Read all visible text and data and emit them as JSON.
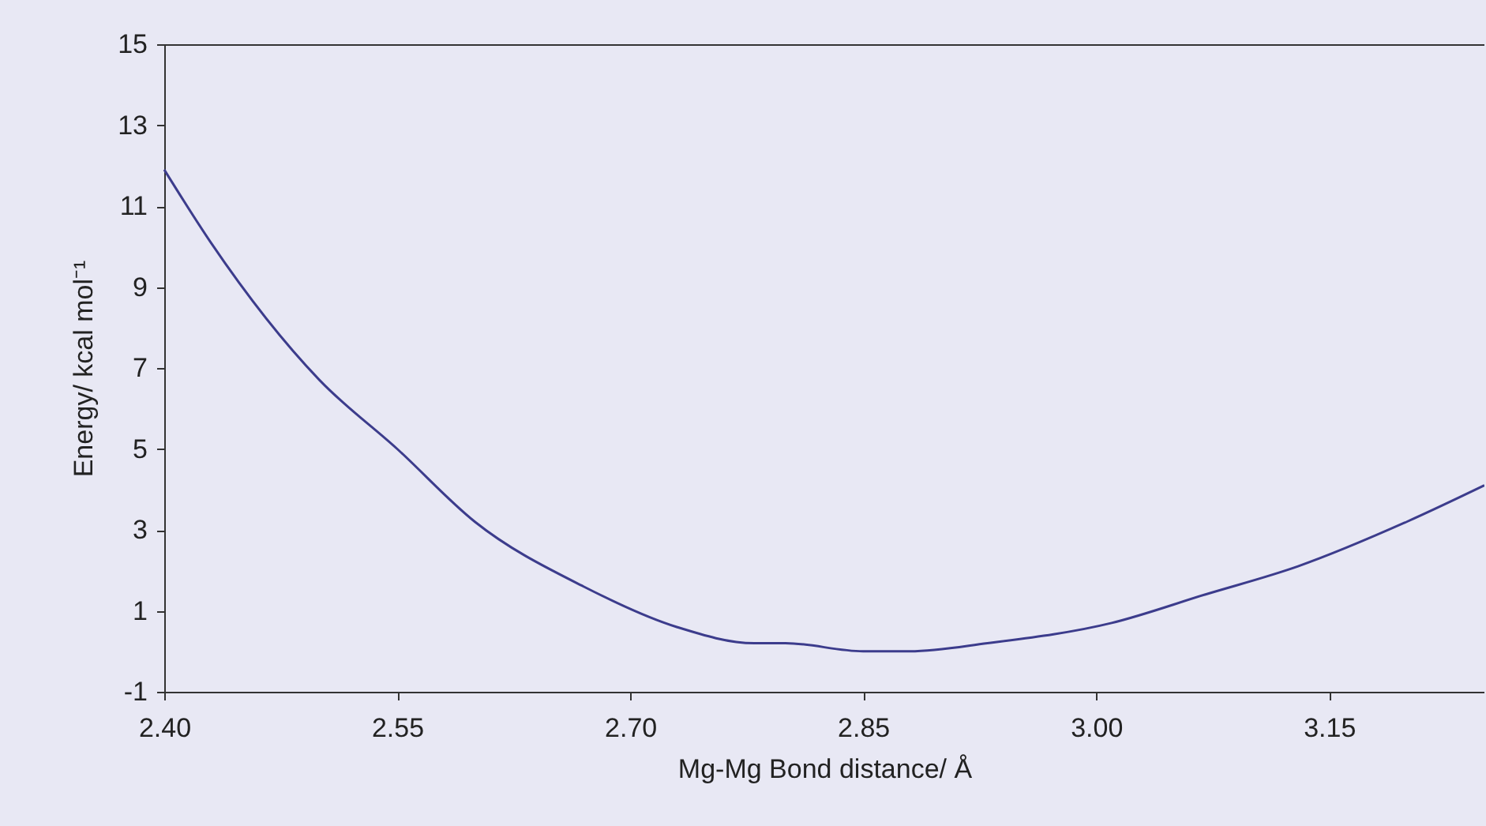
{
  "chart_data": {
    "type": "line",
    "xlabel": "Mg-Mg Bond distance/ Å",
    "ylabel": "Energy/ kcal mol⁻¹",
    "x": [
      2.4,
      2.43,
      2.5,
      2.55,
      2.6,
      2.67,
      2.73,
      2.78,
      2.8,
      2.85,
      2.88,
      2.93,
      3.01,
      3.07,
      3.13,
      3.2,
      3.25
    ],
    "series": [
      {
        "color": "#3c3c8c",
        "values": [
          11.9,
          10.1,
          6.7,
          5.0,
          3.2,
          1.6,
          0.6,
          0.2,
          0.2,
          0.0,
          0.0,
          0.2,
          0.7,
          1.4,
          2.1,
          3.2,
          4.1
        ]
      }
    ],
    "xlim": [
      2.4,
      3.25
    ],
    "xticks": [
      {
        "value": 2.4,
        "label": "2.40"
      },
      {
        "value": 2.55,
        "label": "2.55"
      },
      {
        "value": 2.7,
        "label": "2.70"
      },
      {
        "value": 2.85,
        "label": "2.85"
      },
      {
        "value": 3.0,
        "label": "3.00"
      },
      {
        "value": 3.15,
        "label": "3.15"
      }
    ],
    "ylim": [
      -1,
      15
    ],
    "yticks": [
      -1,
      1,
      3,
      5,
      7,
      9,
      11,
      13,
      15
    ],
    "grid": false,
    "marker": "none",
    "line_style": "solid"
  }
}
